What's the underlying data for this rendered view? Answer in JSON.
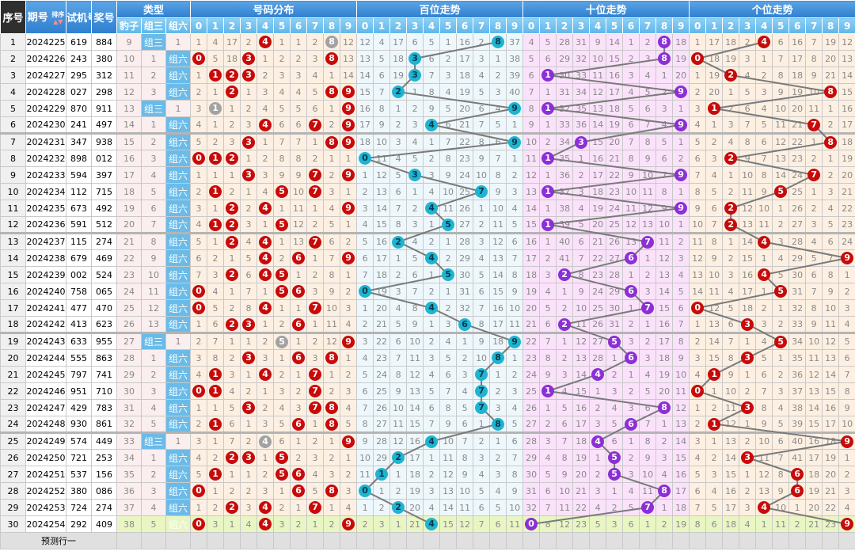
{
  "header": {
    "seq": "序号",
    "issue": "期号",
    "sort_label": "排序",
    "test": "试机号",
    "draw": "奖号",
    "type_group": "类型",
    "dist_group": "号码分布",
    "bai_group": "百位走势",
    "shi_group": "十位走势",
    "ge_group": "个位走势",
    "type_cols": [
      "豹子",
      "组三",
      "组六"
    ],
    "digits": [
      "0",
      "1",
      "2",
      "3",
      "4",
      "5",
      "6",
      "7",
      "8",
      "9"
    ]
  },
  "rows": [
    {
      "seq": "1",
      "issue": "2024225",
      "test": "619",
      "draw": "884",
      "type": "组三"
    },
    {
      "seq": "2",
      "issue": "2024226",
      "test": "243",
      "draw": "380",
      "type": "组六"
    },
    {
      "seq": "3",
      "issue": "2024227",
      "test": "295",
      "draw": "312",
      "type": "组六"
    },
    {
      "seq": "4",
      "issue": "2024228",
      "test": "027",
      "draw": "298",
      "type": "组六"
    },
    {
      "seq": "5",
      "issue": "2024229",
      "test": "870",
      "draw": "911",
      "type": "组三"
    },
    {
      "seq": "6",
      "issue": "2024230",
      "test": "241",
      "draw": "497",
      "type": "组六"
    },
    {
      "seq": "7",
      "issue": "2024231",
      "test": "347",
      "draw": "938",
      "type": "组六"
    },
    {
      "seq": "8",
      "issue": "2024232",
      "test": "898",
      "draw": "012",
      "type": "组六"
    },
    {
      "seq": "9",
      "issue": "2024233",
      "test": "594",
      "draw": "397",
      "type": "组六"
    },
    {
      "seq": "10",
      "issue": "2024234",
      "test": "112",
      "draw": "715",
      "type": "组六"
    },
    {
      "seq": "11",
      "issue": "2024235",
      "test": "673",
      "draw": "492",
      "type": "组六"
    },
    {
      "seq": "12",
      "issue": "2024236",
      "test": "591",
      "draw": "512",
      "type": "组六"
    },
    {
      "seq": "13",
      "issue": "2024237",
      "test": "115",
      "draw": "274",
      "type": "组六"
    },
    {
      "seq": "14",
      "issue": "2024238",
      "test": "679",
      "draw": "469",
      "type": "组六"
    },
    {
      "seq": "15",
      "issue": "2024239",
      "test": "002",
      "draw": "524",
      "type": "组六"
    },
    {
      "seq": "16",
      "issue": "2024240",
      "test": "758",
      "draw": "065",
      "type": "组六"
    },
    {
      "seq": "17",
      "issue": "2024241",
      "test": "477",
      "draw": "470",
      "type": "组六"
    },
    {
      "seq": "18",
      "issue": "2024242",
      "test": "413",
      "draw": "623",
      "type": "组六"
    },
    {
      "seq": "19",
      "issue": "2024243",
      "test": "633",
      "draw": "955",
      "type": "组三"
    },
    {
      "seq": "20",
      "issue": "2024244",
      "test": "555",
      "draw": "863",
      "type": "组六"
    },
    {
      "seq": "21",
      "issue": "2024245",
      "test": "797",
      "draw": "741",
      "type": "组六"
    },
    {
      "seq": "22",
      "issue": "2024246",
      "test": "951",
      "draw": "710",
      "type": "组六"
    },
    {
      "seq": "23",
      "issue": "2024247",
      "test": "429",
      "draw": "783",
      "type": "组六"
    },
    {
      "seq": "24",
      "issue": "2024248",
      "test": "930",
      "draw": "861",
      "type": "组六"
    },
    {
      "seq": "25",
      "issue": "2024249",
      "test": "574",
      "draw": "449",
      "type": "组三"
    },
    {
      "seq": "26",
      "issue": "2024250",
      "test": "721",
      "draw": "253",
      "type": "组六"
    },
    {
      "seq": "27",
      "issue": "2024251",
      "test": "537",
      "draw": "156",
      "type": "组六"
    },
    {
      "seq": "28",
      "issue": "2024252",
      "test": "380",
      "draw": "086",
      "type": "组六"
    },
    {
      "seq": "29",
      "issue": "2024253",
      "test": "724",
      "draw": "274",
      "type": "组六"
    },
    {
      "seq": "30",
      "issue": "2024254",
      "test": "292",
      "draw": "409",
      "type": "组六"
    }
  ],
  "first_row_omissions": {
    "type": [
      9,
      null,
      1
    ],
    "dist": [
      1,
      4,
      17,
      2,
      null,
      1,
      1,
      2,
      null,
      12
    ],
    "bai": [
      12,
      4,
      17,
      6,
      5,
      1,
      16,
      2,
      null,
      37
    ],
    "shi": [
      4,
      5,
      28,
      31,
      9,
      14,
      1,
      2,
      null,
      18
    ],
    "ge": [
      1,
      17,
      18,
      2,
      null,
      6,
      16,
      7,
      19,
      12
    ]
  },
  "footer": {
    "predict_label": "预测行一"
  },
  "colors": {
    "dist_hit": "#c80a0a",
    "dist_repeat": "#a2a2a2",
    "bai_ball": "#1eb4d2",
    "shi_ball": "#8b2fd6",
    "ge_ball": "#c80a0a",
    "trend_line": "#7a7a7a"
  }
}
